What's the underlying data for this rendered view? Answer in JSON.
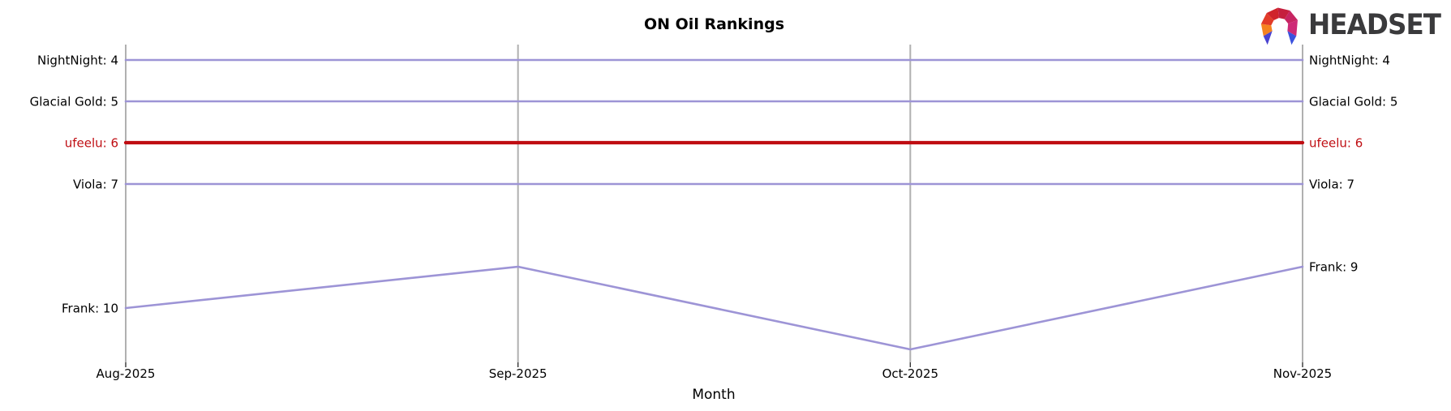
{
  "logo": {
    "text": "HEADSET"
  },
  "chart_data": {
    "type": "line",
    "title": "ON Oil Rankings",
    "xlabel": "Month",
    "categories": [
      "Aug-2025",
      "Sep-2025",
      "Oct-2025",
      "Nov-2025"
    ],
    "series": [
      {
        "name": "NightNight",
        "values": [
          4,
          4,
          4,
          4
        ],
        "label_left": "NightNight: 4",
        "label_right": "NightNight: 4",
        "highlight": false
      },
      {
        "name": "Glacial Gold",
        "values": [
          5,
          5,
          5,
          5
        ],
        "label_left": "Glacial Gold: 5",
        "label_right": "Glacial Gold: 5",
        "highlight": false
      },
      {
        "name": "ufeelu",
        "values": [
          6,
          6,
          6,
          6
        ],
        "label_left": "ufeelu: 6",
        "label_right": "ufeelu: 6",
        "highlight": true
      },
      {
        "name": "Viola",
        "values": [
          7,
          7,
          7,
          7
        ],
        "label_left": "Viola: 7",
        "label_right": "Viola: 7",
        "highlight": false
      },
      {
        "name": "Frank",
        "values": [
          10,
          9,
          11,
          9
        ],
        "label_left": "Frank: 10",
        "label_right": "Frank: 9",
        "highlight": false
      }
    ],
    "colors": {
      "line": "#9d94d6",
      "highlight": "#bf0d12",
      "grid": "#b0b0b0",
      "tick": "#333333",
      "text": "#000000"
    },
    "axes": {
      "y_inverted": true,
      "y_meaning": "rank (lower is better)",
      "y_range": [
        3.6,
        11.3
      ],
      "grid": "vertical-only",
      "legend": "inline end-of-line labels on both sides"
    }
  }
}
